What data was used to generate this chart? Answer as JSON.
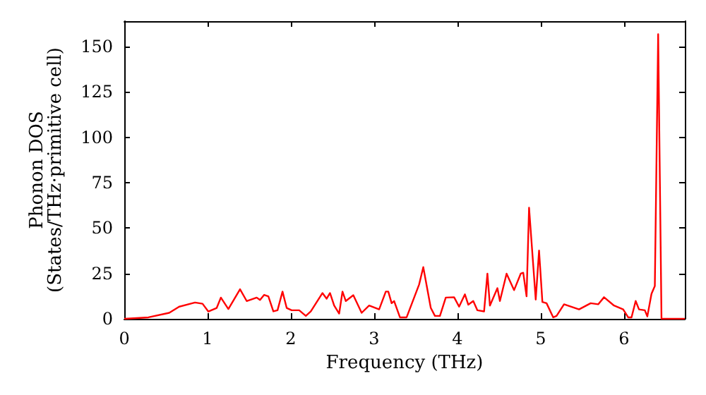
{
  "chart_data": {
    "type": "line",
    "xlabel": "Frequency (THz)",
    "ylabel": "Phonon DOS\n(States/THz·primitive cell)",
    "xlim": [
      0,
      6.73
    ],
    "xticks": [
      0,
      1,
      2,
      3,
      4,
      5,
      6
    ],
    "ylim": [
      0,
      164
    ],
    "yticks": [
      0,
      25,
      50,
      75,
      100,
      125,
      150
    ],
    "marker": "none",
    "line_style": "solid",
    "series": [
      {
        "color": "#ff0000",
        "x": [
          0,
          0.29,
          0.54,
          0.66,
          0.85,
          0.94,
          1.01,
          1.11,
          1.16,
          1.25,
          1.39,
          1.47,
          1.59,
          1.63,
          1.68,
          1.73,
          1.79,
          1.84,
          1.9,
          1.95,
          2.01,
          2.1,
          2.18,
          2.24,
          2.38,
          2.43,
          2.47,
          2.52,
          2.58,
          2.62,
          2.66,
          2.75,
          2.85,
          2.94,
          3.06,
          3.14,
          3.17,
          3.21,
          3.24,
          3.31,
          3.39,
          3.54,
          3.59,
          3.68,
          3.73,
          3.79,
          3.86,
          3.96,
          4.02,
          4.09,
          4.13,
          4.19,
          4.24,
          4.32,
          4.36,
          4.39,
          4.48,
          4.51,
          4.59,
          4.68,
          4.76,
          4.79,
          4.83,
          4.86,
          4.94,
          4.98,
          5.02,
          5.07,
          5.15,
          5.19,
          5.28,
          5.46,
          5.6,
          5.69,
          5.76,
          5.88,
          5.99,
          6.05,
          6.09,
          6.14,
          6.18,
          6.25,
          6.28,
          6.33,
          6.37,
          6.41,
          6.45,
          6.73
        ],
        "values": [
          0,
          0.8,
          3.3,
          6.7,
          9,
          8.3,
          4,
          6,
          11.7,
          5.4,
          16.3,
          9.8,
          11.7,
          10.4,
          13.2,
          12.4,
          4.1,
          4.7,
          15,
          6,
          4.7,
          4.7,
          1.6,
          4.1,
          14.2,
          11.1,
          14.2,
          7.3,
          2.9,
          15,
          9.8,
          13,
          3.3,
          7.3,
          5.2,
          15,
          15,
          8.6,
          9.8,
          0.8,
          0.8,
          18.9,
          28.5,
          6,
          1.6,
          1.6,
          11.7,
          11.9,
          6.7,
          13.5,
          7.8,
          9.8,
          4.7,
          4.1,
          24.9,
          7.3,
          16.9,
          9.8,
          24.9,
          15.8,
          24.9,
          25.4,
          12.4,
          61.2,
          10.6,
          37.6,
          9.3,
          8.6,
          0.8,
          1.6,
          8,
          5.2,
          8.6,
          8,
          11.9,
          7.3,
          5.2,
          0.8,
          0.8,
          9.8,
          5.2,
          4.7,
          1.3,
          13.8,
          18.1,
          156.8,
          0,
          0
        ]
      }
    ]
  }
}
